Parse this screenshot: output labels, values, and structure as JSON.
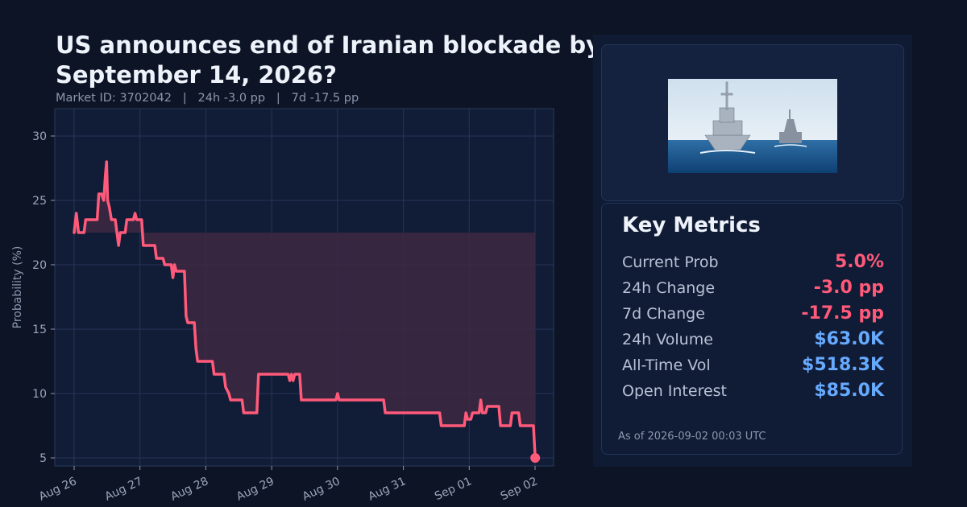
{
  "header": {
    "title": "US announces end of Iranian blockade by September 14, 2026?",
    "subtitle": "Market ID: 3702042   |   24h -3.0 pp   |   7d -17.5 pp"
  },
  "colors": {
    "background": "#0d1425",
    "line": "#ff5a7a",
    "fill": "#3e2842",
    "negative": "#ff5a7a",
    "positive_blue": "#66aaff",
    "grid": "#25355a"
  },
  "chart_data": {
    "type": "line",
    "ylabel": "Probability (%)",
    "xlabel": "",
    "ylim": [
      4.5,
      32
    ],
    "yticks": [
      5,
      10,
      15,
      20,
      25,
      30
    ],
    "xticks": [
      "Aug 26",
      "Aug 27",
      "Aug 28",
      "Aug 29",
      "Aug 30",
      "Aug 31",
      "Sep 01",
      "Sep 02"
    ],
    "grid": true,
    "baseline_fill_value": 22.5,
    "series": [
      {
        "points": [
          [
            "2026-08-26 00:00",
            22.5
          ],
          [
            "2026-08-26 00:48",
            24.0
          ],
          [
            "2026-08-26 01:36",
            22.5
          ],
          [
            "2026-08-26 02:24",
            22.5
          ],
          [
            "2026-08-26 03:36",
            22.5
          ],
          [
            "2026-08-26 04:12",
            23.5
          ],
          [
            "2026-08-26 05:24",
            23.5
          ],
          [
            "2026-08-26 07:12",
            23.5
          ],
          [
            "2026-08-26 08:24",
            23.5
          ],
          [
            "2026-08-26 09:00",
            25.5
          ],
          [
            "2026-08-26 10:00",
            25.5
          ],
          [
            "2026-08-26 10:48",
            25.0
          ],
          [
            "2026-08-26 11:24",
            27.0
          ],
          [
            "2026-08-26 11:50",
            28.0
          ],
          [
            "2026-08-26 12:12",
            25.0
          ],
          [
            "2026-08-26 12:48",
            24.5
          ],
          [
            "2026-08-26 13:36",
            23.5
          ],
          [
            "2026-08-26 15:00",
            23.5
          ],
          [
            "2026-08-26 15:36",
            22.5
          ],
          [
            "2026-08-26 16:12",
            21.5
          ],
          [
            "2026-08-26 16:48",
            22.5
          ],
          [
            "2026-08-26 18:36",
            22.5
          ],
          [
            "2026-08-26 19:12",
            23.5
          ],
          [
            "2026-08-26 21:36",
            23.5
          ],
          [
            "2026-08-26 22:12",
            24.0
          ],
          [
            "2026-08-26 22:48",
            23.5
          ],
          [
            "2026-08-27 00:36",
            23.5
          ],
          [
            "2026-08-27 01:12",
            21.5
          ],
          [
            "2026-08-27 05:24",
            21.5
          ],
          [
            "2026-08-27 06:00",
            20.5
          ],
          [
            "2026-08-27 08:24",
            20.5
          ],
          [
            "2026-08-27 09:00",
            20.0
          ],
          [
            "2026-08-27 11:24",
            20.0
          ],
          [
            "2026-08-27 12:00",
            19.0
          ],
          [
            "2026-08-27 12:36",
            20.0
          ],
          [
            "2026-08-27 13:12",
            19.5
          ],
          [
            "2026-08-27 16:12",
            19.5
          ],
          [
            "2026-08-27 16:48",
            16.0
          ],
          [
            "2026-08-27 17:24",
            15.5
          ],
          [
            "2026-08-27 19:48",
            15.5
          ],
          [
            "2026-08-27 20:24",
            13.5
          ],
          [
            "2026-08-27 21:00",
            12.5
          ],
          [
            "2026-08-28 02:24",
            12.5
          ],
          [
            "2026-08-28 03:00",
            11.5
          ],
          [
            "2026-08-28 06:36",
            11.5
          ],
          [
            "2026-08-28 07:12",
            10.5
          ],
          [
            "2026-08-28 08:24",
            10.0
          ],
          [
            "2026-08-28 09:00",
            9.5
          ],
          [
            "2026-08-28 13:12",
            9.5
          ],
          [
            "2026-08-28 13:48",
            8.5
          ],
          [
            "2026-08-28 18:36",
            8.5
          ],
          [
            "2026-08-28 19:12",
            11.5
          ],
          [
            "2026-08-29 00:00",
            11.5
          ],
          [
            "2026-08-29 06:00",
            11.5
          ],
          [
            "2026-08-29 06:36",
            11.0
          ],
          [
            "2026-08-29 07:12",
            11.5
          ],
          [
            "2026-08-29 07:48",
            11.0
          ],
          [
            "2026-08-29 08:24",
            11.5
          ],
          [
            "2026-08-29 10:12",
            11.5
          ],
          [
            "2026-08-29 10:48",
            9.5
          ],
          [
            "2026-08-29 23:24",
            9.5
          ],
          [
            "2026-08-30 00:00",
            10.0
          ],
          [
            "2026-08-30 00:36",
            9.5
          ],
          [
            "2026-08-30 16:48",
            9.5
          ],
          [
            "2026-08-30 17:24",
            8.5
          ],
          [
            "2026-08-31 13:12",
            8.5
          ],
          [
            "2026-08-31 13:48",
            7.5
          ],
          [
            "2026-08-31 22:12",
            7.5
          ],
          [
            "2026-08-31 22:48",
            8.5
          ],
          [
            "2026-08-31 23:24",
            8.0
          ],
          [
            "2026-09-01 00:36",
            8.0
          ],
          [
            "2026-09-01 01:12",
            8.5
          ],
          [
            "2026-09-01 03:36",
            8.5
          ],
          [
            "2026-09-01 04:12",
            9.5
          ],
          [
            "2026-09-01 04:48",
            8.5
          ],
          [
            "2026-09-01 06:00",
            8.5
          ],
          [
            "2026-09-01 06:36",
            9.0
          ],
          [
            "2026-09-01 10:48",
            9.0
          ],
          [
            "2026-09-01 11:24",
            7.5
          ],
          [
            "2026-09-01 15:00",
            7.5
          ],
          [
            "2026-09-01 15:36",
            8.5
          ],
          [
            "2026-09-01 18:00",
            8.5
          ],
          [
            "2026-09-01 18:36",
            7.5
          ],
          [
            "2026-09-01 23:24",
            7.5
          ],
          [
            "2026-09-02 00:03",
            5.0
          ]
        ]
      }
    ]
  },
  "side": {
    "image_alt": "two navy warships at sea",
    "metrics_title": "Key Metrics",
    "metrics": [
      {
        "label": "Current Prob",
        "value": "5.0%",
        "color": "#ff5a7a"
      },
      {
        "label": "24h Change",
        "value": "-3.0 pp",
        "color": "#ff5a7a"
      },
      {
        "label": "7d Change",
        "value": "-17.5 pp",
        "color": "#ff5a7a"
      },
      {
        "label": "24h Volume",
        "value": "$63.0K",
        "color": "#66aaff"
      },
      {
        "label": "All-Time Vol",
        "value": "$518.3K",
        "color": "#66aaff"
      },
      {
        "label": "Open Interest",
        "value": "$85.0K",
        "color": "#66aaff"
      }
    ],
    "as_of": "As of 2026-09-02 00:03 UTC"
  }
}
